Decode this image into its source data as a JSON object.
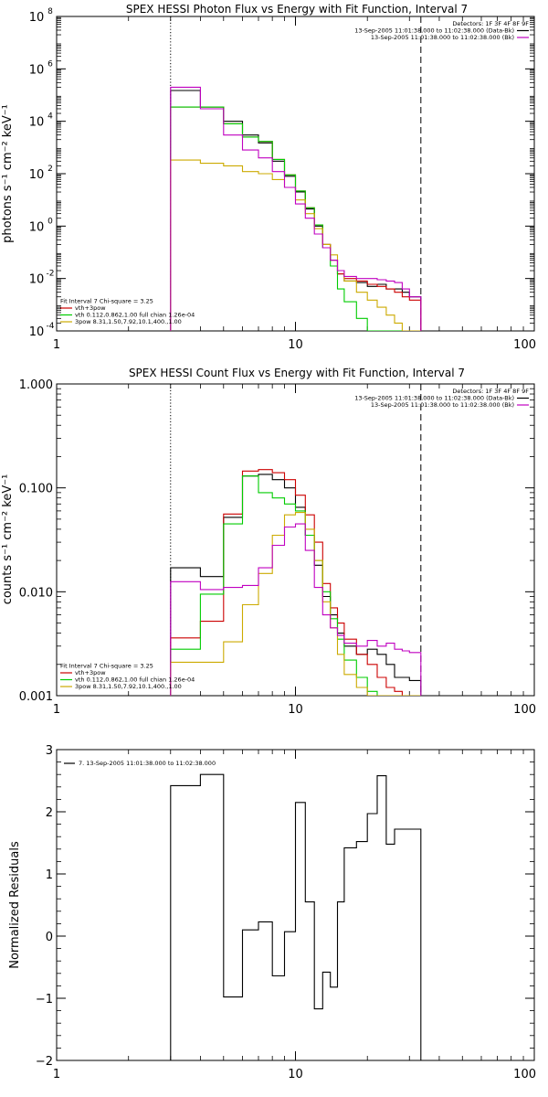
{
  "chart_data": [
    {
      "type": "line",
      "title": "SPEX HESSI Photon Flux vs Energy with Fit Function, Interval 7",
      "xlabel": "",
      "ylabel": "photons s⁻¹ cm⁻² keV⁻¹",
      "xscale": "log",
      "yscale": "log",
      "xlim": [
        1,
        100
      ],
      "ylim": [
        0.0001,
        100000000
      ],
      "xticks": [
        {
          "v": 1,
          "label": "1"
        },
        {
          "v": 10,
          "label": "10"
        },
        {
          "v": 100,
          "label": "100"
        }
      ],
      "yticks": [
        {
          "v": 0.0001,
          "base": "10",
          "exp": "-4"
        },
        {
          "v": 0.01,
          "base": "10",
          "exp": "-2"
        },
        {
          "v": 1,
          "base": "10",
          "exp": "0"
        },
        {
          "v": 100,
          "base": "10",
          "exp": "2"
        },
        {
          "v": 10000,
          "base": "10",
          "exp": "4"
        },
        {
          "v": 1000000,
          "base": "10",
          "exp": "6"
        },
        {
          "v": 100000000,
          "base": "10",
          "exp": "8"
        }
      ],
      "vlines": [
        {
          "x": 3,
          "style": "dotted"
        },
        {
          "x": 33.5,
          "style": "dashed"
        }
      ],
      "legend_top": [
        "Detectors: 1F 3F 4F 8F 9F",
        "13-Sep-2005 11:01:38.000 to 11:02:38.000 (Data-Bk)",
        "13-Sep-2005 11:01:38.000 to 11:02:38.000 (Bk)"
      ],
      "legend_top_colors": [
        "",
        "#000000",
        "#c000c0"
      ],
      "legend_bottom": [
        "Fit Interval 7   Chi-square = 3.25",
        "vth+3pow",
        "vth 0.112,0.862,1.00  full chian 1.26e-04",
        "3pow 8.31,1.50,7.92,10.1,400.,1.00"
      ],
      "legend_bottom_colors": [
        "",
        "#cc0000",
        "#00cc00",
        "#ccaa00"
      ],
      "edges": [
        3,
        4,
        5,
        6,
        7,
        8,
        9,
        10,
        11,
        12,
        13,
        14,
        15,
        16,
        18,
        20,
        22,
        24,
        26,
        28,
        30,
        33.5
      ],
      "series": [
        {
          "color": "#000000",
          "values": [
            150000,
            35000,
            10000,
            3000,
            1500,
            300,
            80,
            20,
            4.5,
            1,
            0.2,
            0.05,
            0.015,
            0.008,
            0.007,
            0.005,
            0.006,
            0.004,
            0.004,
            0.003,
            0.002
          ]
        },
        {
          "color": "#cc0000",
          "values": [
            35000,
            35000,
            8000,
            2500,
            1700,
            350,
            90,
            22,
            5,
            1.1,
            0.2,
            0.05,
            0.015,
            0.01,
            0.008,
            0.006,
            0.005,
            0.004,
            0.003,
            0.002,
            0.0015
          ]
        },
        {
          "color": "#00cc00",
          "values": [
            35000,
            35000,
            8000,
            2500,
            1700,
            350,
            90,
            22,
            5,
            1.1,
            0.15,
            0.03,
            0.004,
            0.0013,
            0.0003,
            0.0001,
            5e-05,
            5e-05,
            5e-05,
            5e-05,
            5e-05
          ]
        },
        {
          "color": "#ccaa00",
          "values": [
            330,
            250,
            200,
            120,
            100,
            60,
            30,
            10,
            3,
            0.8,
            0.2,
            0.08,
            0.02,
            0.008,
            0.003,
            0.0015,
            0.0008,
            0.0004,
            0.0002,
            0.0001,
            5e-05
          ]
        },
        {
          "color": "#c000c0",
          "values": [
            200000,
            30000,
            3000,
            800,
            400,
            120,
            30,
            7,
            2,
            0.5,
            0.15,
            0.05,
            0.02,
            0.012,
            0.01,
            0.01,
            0.009,
            0.008,
            0.007,
            0.004,
            0.002
          ]
        }
      ]
    },
    {
      "type": "line",
      "title": "SPEX HESSI Count Flux vs Energy with Fit Function, Interval 7",
      "xlabel": "",
      "ylabel": "counts s⁻¹ cm⁻² keV⁻¹",
      "xscale": "log",
      "yscale": "log",
      "xlim": [
        1,
        100
      ],
      "ylim": [
        0.001,
        1
      ],
      "xticks": [
        {
          "v": 1,
          "label": "1"
        },
        {
          "v": 10,
          "label": "10"
        },
        {
          "v": 100,
          "label": "100"
        }
      ],
      "yticks": [
        {
          "v": 0.001,
          "label": "0.001"
        },
        {
          "v": 0.01,
          "label": "0.010"
        },
        {
          "v": 0.1,
          "label": "0.100"
        },
        {
          "v": 1,
          "label": "1.000"
        }
      ],
      "vlines": [
        {
          "x": 3,
          "style": "dotted"
        },
        {
          "x": 33.5,
          "style": "dashed"
        }
      ],
      "legend_top": [
        "Detectors: 1F 3F 4F 8F 9F",
        "13-Sep-2005 11:01:38.000 to 11:02:38.000 (Data-Bk)",
        "13-Sep-2005 11:01:38.000 to 11:02:38.000 (Bk)"
      ],
      "legend_top_colors": [
        "",
        "#000000",
        "#c000c0"
      ],
      "legend_bottom": [
        "Fit Interval 7   Chi-square = 3.25",
        "vth+3pow",
        "vth 0.112,0.862,1.00  full chian 1.26e-04",
        "3pow 8.31,1.50,7.92,10.1,400.,1.00"
      ],
      "legend_bottom_colors": [
        "",
        "#cc0000",
        "#00cc00",
        "#ccaa00"
      ],
      "edges": [
        3,
        4,
        5,
        6,
        7,
        8,
        9,
        10,
        11,
        12,
        13,
        14,
        15,
        16,
        18,
        20,
        22,
        24,
        26,
        28,
        30,
        33.5
      ],
      "series": [
        {
          "color": "#000000",
          "values": [
            0.017,
            0.014,
            0.052,
            0.13,
            0.135,
            0.12,
            0.1,
            0.065,
            0.035,
            0.018,
            0.009,
            0.006,
            0.004,
            0.003,
            0.0025,
            0.0028,
            0.0025,
            0.002,
            0.0015,
            0.0015,
            0.0014
          ]
        },
        {
          "color": "#cc0000",
          "values": [
            0.0036,
            0.0052,
            0.056,
            0.145,
            0.15,
            0.14,
            0.12,
            0.085,
            0.055,
            0.03,
            0.012,
            0.007,
            0.005,
            0.0035,
            0.0025,
            0.002,
            0.0015,
            0.0012,
            0.0011,
            0.001,
            0.001
          ]
        },
        {
          "color": "#00cc00",
          "values": [
            0.0028,
            0.0095,
            0.045,
            0.13,
            0.09,
            0.08,
            0.07,
            0.06,
            0.035,
            0.02,
            0.01,
            0.0055,
            0.0035,
            0.0022,
            0.0015,
            0.0011,
            0.001,
            0.001,
            0.001,
            0.001,
            0.001
          ]
        },
        {
          "color": "#ccaa00",
          "values": [
            0.0021,
            0.0021,
            0.0033,
            0.0075,
            0.015,
            0.035,
            0.055,
            0.058,
            0.04,
            0.02,
            0.008,
            0.0045,
            0.0025,
            0.0016,
            0.0012,
            0.001,
            0.001,
            0.001,
            0.001,
            0.001,
            0.001
          ]
        },
        {
          "color": "#c000c0",
          "values": [
            0.0125,
            0.0105,
            0.011,
            0.0115,
            0.017,
            0.028,
            0.042,
            0.045,
            0.025,
            0.011,
            0.006,
            0.0045,
            0.0038,
            0.0032,
            0.003,
            0.0034,
            0.003,
            0.0032,
            0.0028,
            0.0027,
            0.0026
          ]
        }
      ]
    },
    {
      "type": "line",
      "title": "",
      "xlabel": "",
      "ylabel": "Normalized Residuals",
      "xscale": "log",
      "yscale": "linear",
      "xlim": [
        1,
        100
      ],
      "ylim": [
        -2,
        3
      ],
      "xticks": [
        {
          "v": 1,
          "label": "1"
        },
        {
          "v": 10,
          "label": "10"
        },
        {
          "v": 100,
          "label": "100"
        }
      ],
      "yticks": [
        {
          "v": -2,
          "label": "−2"
        },
        {
          "v": -1,
          "label": "−1"
        },
        {
          "v": 0,
          "label": "0"
        },
        {
          "v": 1,
          "label": "1"
        },
        {
          "v": 2,
          "label": "2"
        },
        {
          "v": 3,
          "label": "3"
        }
      ],
      "vlines": [],
      "legend_top": [],
      "legend_top_colors": [],
      "legend_bottom": [],
      "legend_bottom_colors": [],
      "legend_left": "7. 13-Sep-2005 11:01:38.000 to 11:02:38.000",
      "edges": [
        3,
        4,
        5,
        6,
        7,
        8,
        9,
        10,
        11,
        12,
        13,
        14,
        15,
        16,
        18,
        20,
        22,
        24,
        26,
        28,
        30,
        33.5
      ],
      "series": [
        {
          "color": "#000000",
          "values": [
            2.42,
            2.6,
            -0.98,
            0.1,
            0.23,
            -0.64,
            0.07,
            2.15,
            0.55,
            -1.17,
            -0.58,
            -0.82,
            0.55,
            1.42,
            1.52,
            1.97,
            2.58,
            1.48,
            1.72,
            1.72,
            1.72
          ]
        }
      ]
    }
  ]
}
